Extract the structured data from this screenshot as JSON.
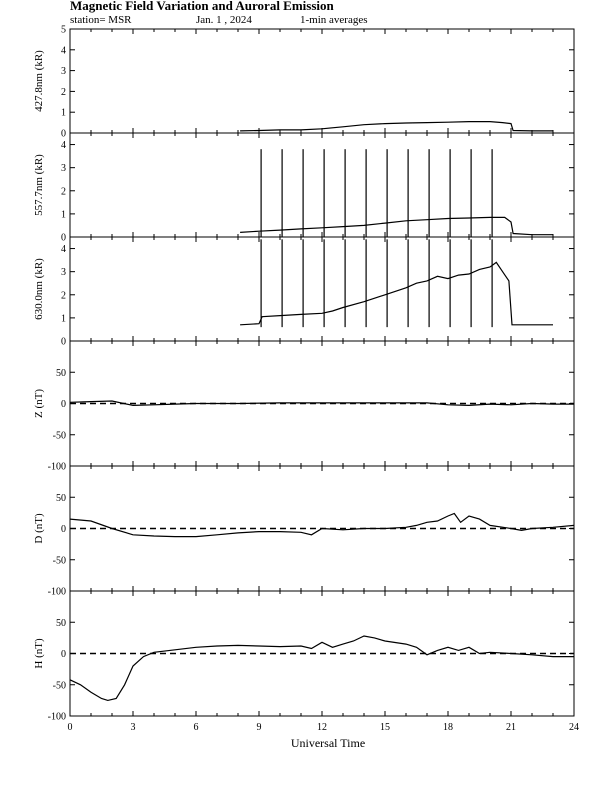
{
  "header": {
    "title": "Magnetic Field Variation and Auroral Emission",
    "station": "station= MSR",
    "date": "Jan. 1  , 2024",
    "averaging": "1-min averages"
  },
  "chart_data": [
    {
      "type": "line",
      "panel": "427.8nm",
      "ylabel": "427.8nm (kR)",
      "ylim": [
        0,
        5
      ],
      "yticks": [
        "0",
        "1",
        "2",
        "3",
        "4",
        "5"
      ],
      "grid": false,
      "series": [
        {
          "x": [
            8.1,
            9,
            10,
            11,
            12,
            13,
            14,
            15,
            16,
            17,
            18,
            19,
            20,
            20.6,
            21.0,
            21.1,
            22,
            23
          ],
          "values": [
            0.1,
            0.12,
            0.15,
            0.15,
            0.2,
            0.3,
            0.4,
            0.45,
            0.48,
            0.5,
            0.52,
            0.55,
            0.55,
            0.5,
            0.45,
            0.12,
            0.1,
            0.1
          ]
        }
      ]
    },
    {
      "type": "line",
      "panel": "557.7nm",
      "ylabel": "557.7nm (kR)",
      "ylim": [
        0,
        4.5
      ],
      "yticks": [
        "0",
        "1",
        "2",
        "3",
        "4"
      ],
      "grid": false,
      "spikes_x": [
        9.1,
        10.1,
        11.1,
        12.1,
        13.1,
        14.1,
        15.1,
        16.1,
        17.1,
        18.1,
        19.1,
        20.1
      ],
      "spike_top": 3.8,
      "series": [
        {
          "x": [
            8.1,
            9,
            10,
            11,
            12,
            13,
            14,
            15,
            16,
            17,
            18,
            19,
            20,
            20.7,
            21.0,
            21.1,
            22,
            23
          ],
          "values": [
            0.2,
            0.25,
            0.3,
            0.35,
            0.4,
            0.45,
            0.5,
            0.6,
            0.7,
            0.75,
            0.8,
            0.82,
            0.85,
            0.85,
            0.65,
            0.15,
            0.1,
            0.1
          ]
        }
      ]
    },
    {
      "type": "line",
      "panel": "630.0nm",
      "ylabel": "630.0nm (kR)",
      "ylim": [
        0,
        4.5
      ],
      "yticks": [
        "0",
        "1",
        "2",
        "3",
        "4"
      ],
      "grid": false,
      "spikes_x": [
        9.1,
        10.1,
        11.1,
        12.1,
        13.1,
        14.1,
        15.1,
        16.1,
        17.1,
        18.1,
        19.1,
        20.1
      ],
      "spike_top": 4.4,
      "spike_bottom": 0.6,
      "series": [
        {
          "x": [
            8.1,
            9.0,
            9.15,
            10,
            11,
            12,
            12.5,
            13,
            14,
            15,
            16,
            16.5,
            17,
            17.5,
            18,
            18.5,
            19,
            19.5,
            20,
            20.3,
            20.6,
            20.9,
            21.05,
            22,
            23
          ],
          "values": [
            0.7,
            0.75,
            1.05,
            1.1,
            1.15,
            1.2,
            1.3,
            1.45,
            1.7,
            2.0,
            2.3,
            2.5,
            2.6,
            2.8,
            2.7,
            2.85,
            2.9,
            3.1,
            3.2,
            3.4,
            3.0,
            2.6,
            0.7,
            0.7,
            0.7
          ]
        }
      ]
    },
    {
      "type": "line",
      "panel": "Z",
      "ylabel": "Z (nT)",
      "ylim": [
        -100,
        100
      ],
      "yticks": [
        "-100",
        "-50",
        "0",
        "50"
      ],
      "grid": false,
      "baseline": 0,
      "series": [
        {
          "x": [
            0,
            1,
            2,
            3,
            4,
            5,
            6,
            8,
            10,
            12,
            14,
            16,
            17,
            18,
            19,
            20,
            21,
            22,
            23,
            24
          ],
          "values": [
            2,
            3,
            4,
            -3,
            -2,
            -1,
            0,
            0,
            1,
            1,
            1,
            1,
            1,
            -2,
            -3,
            -1,
            -2,
            0,
            -1,
            -1
          ]
        }
      ]
    },
    {
      "type": "line",
      "panel": "D",
      "ylabel": "D (nT)",
      "ylim": [
        -100,
        100
      ],
      "yticks": [
        "-100",
        "-50",
        "0",
        "50"
      ],
      "grid": false,
      "baseline": 0,
      "series": [
        {
          "x": [
            0,
            1,
            2,
            3,
            4,
            5,
            6,
            7,
            8,
            9,
            10,
            11,
            11.5,
            12,
            13,
            14,
            15,
            16,
            16.5,
            17,
            17.5,
            18,
            18.3,
            18.6,
            19,
            19.5,
            20,
            21,
            21.5,
            22,
            23,
            24
          ],
          "values": [
            15,
            12,
            0,
            -10,
            -12,
            -13,
            -13,
            -10,
            -7,
            -5,
            -5,
            -6,
            -10,
            0,
            -2,
            0,
            0,
            2,
            5,
            10,
            12,
            20,
            24,
            10,
            20,
            15,
            5,
            0,
            -3,
            0,
            2,
            5
          ]
        }
      ]
    },
    {
      "type": "line",
      "panel": "H",
      "ylabel": "H (nT)",
      "ylim": [
        -100,
        100
      ],
      "yticks": [
        "-100",
        "-50",
        "0",
        "50"
      ],
      "grid": false,
      "baseline": 0,
      "series": [
        {
          "x": [
            0,
            0.5,
            1,
            1.5,
            1.8,
            2.2,
            2.6,
            3,
            3.5,
            4,
            5,
            6,
            7,
            8,
            9,
            10,
            11,
            11.5,
            12,
            12.5,
            13,
            13.5,
            14,
            14.5,
            15,
            16,
            16.5,
            17,
            17.5,
            18,
            18.5,
            19,
            19.5,
            20,
            21,
            22,
            23,
            24
          ],
          "values": [
            -42,
            -50,
            -62,
            -72,
            -75,
            -72,
            -50,
            -20,
            -5,
            2,
            6,
            10,
            12,
            13,
            12,
            11,
            12,
            8,
            18,
            10,
            15,
            20,
            28,
            25,
            20,
            15,
            10,
            -2,
            5,
            10,
            5,
            10,
            0,
            2,
            0,
            -2,
            -5,
            -5
          ]
        }
      ]
    }
  ],
  "xaxis": {
    "label": "Universal Time",
    "range": [
      0,
      24
    ],
    "ticks": [
      "0",
      "3",
      "6",
      "9",
      "12",
      "15",
      "18",
      "21",
      "24"
    ]
  }
}
